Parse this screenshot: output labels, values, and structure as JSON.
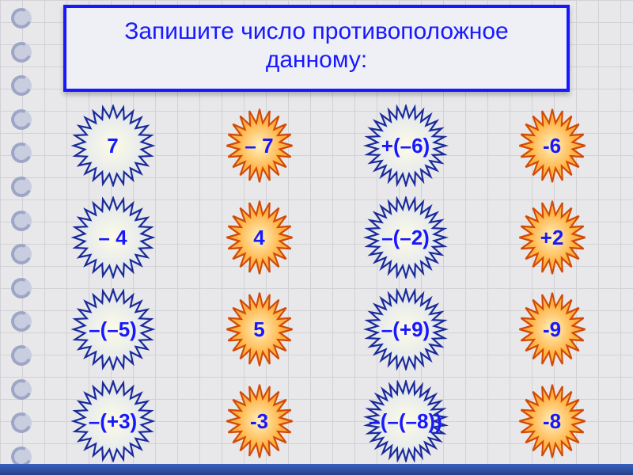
{
  "title": "Запишите число противоположное данному:",
  "colors": {
    "title_text": "#1818ff",
    "title_border": "#1818ff",
    "title_bg": "#eef0f6",
    "grid_bg": "#e8e8ea",
    "grid_line": "#d2d2d6",
    "blue_stroke": "#1a2a9a",
    "blue_fill_outer": "#d8e0f0",
    "blue_fill_inner": "#fdfbe6",
    "orange_stroke": "#d24a06",
    "orange_fill_outer": "#f7c06a",
    "orange_fill_mid": "#ffb040",
    "orange_fill_inner": "#fff2c0",
    "label": "#1818ff"
  },
  "items": [
    {
      "label": "7",
      "style": "blue",
      "points": 24
    },
    {
      "label": "– 7",
      "style": "orange",
      "points": 20
    },
    {
      "label": "+(–6)",
      "style": "blue",
      "points": 28
    },
    {
      "label": "-6",
      "style": "orange",
      "points": 20
    },
    {
      "label": "– 4",
      "style": "blue",
      "points": 24
    },
    {
      "label": "4",
      "style": "orange",
      "points": 20
    },
    {
      "label": "–(–2)",
      "style": "blue",
      "points": 28
    },
    {
      "label": "+2",
      "style": "orange",
      "points": 20
    },
    {
      "label": "–(–5)",
      "style": "blue",
      "points": 24
    },
    {
      "label": "5",
      "style": "orange",
      "points": 20
    },
    {
      "label": "–(+9)",
      "style": "blue",
      "points": 28
    },
    {
      "label": "-9",
      "style": "orange",
      "points": 20
    },
    {
      "label": "–(+3)",
      "style": "blue",
      "points": 24
    },
    {
      "label": "-3",
      "style": "orange",
      "points": 20
    },
    {
      "label": "–(–(–8))",
      "style": "blue",
      "points": 30
    },
    {
      "label": "-8",
      "style": "orange",
      "points": 20
    }
  ]
}
